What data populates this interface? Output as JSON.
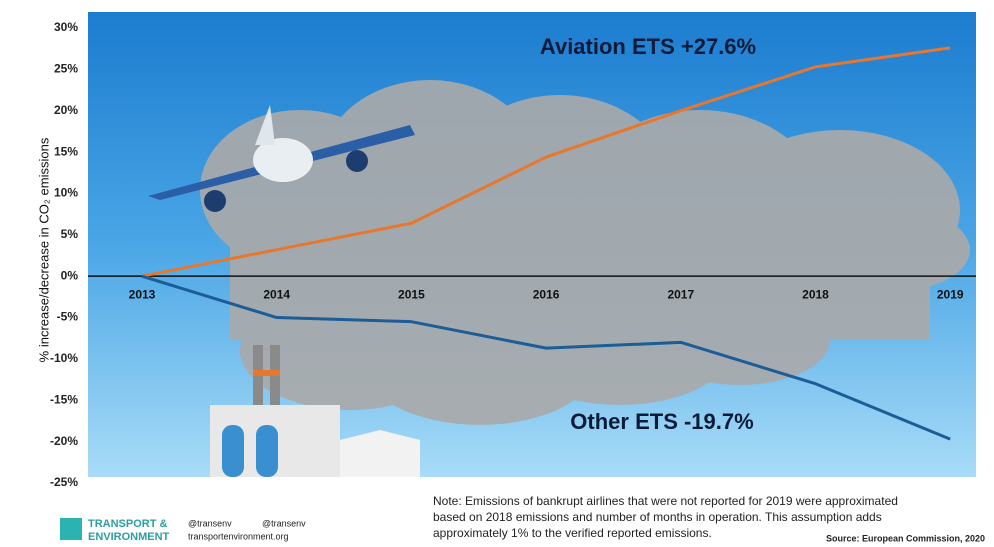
{
  "chart_data": {
    "type": "line",
    "y_label": "% increase/decrease in CO₂ emissions",
    "categories": [
      "2013",
      "2014",
      "2015",
      "2016",
      "2017",
      "2018",
      "2019"
    ],
    "series": [
      {
        "name": "Aviation ETS",
        "color": "#e8772e",
        "values": [
          0,
          3.2,
          6.4,
          14.4,
          20,
          25.3,
          27.6
        ]
      },
      {
        "name": "Other ETS",
        "color": "#1c5d96",
        "values": [
          0,
          -5,
          -5.5,
          -8.7,
          -8,
          -13,
          -19.7
        ]
      }
    ],
    "annotations": [
      "Aviation ETS +27.6%",
      "Other ETS -19.7%"
    ],
    "ylim": [
      -25,
      30
    ],
    "yticks": [
      {
        "value": 30,
        "label": "30%"
      },
      {
        "value": 25,
        "label": "25%"
      },
      {
        "value": 20,
        "label": "20%"
      },
      {
        "value": 15,
        "label": "15%"
      },
      {
        "value": 10,
        "label": "10%"
      },
      {
        "value": 5,
        "label": "5%"
      },
      {
        "value": 0,
        "label": "0%"
      },
      {
        "value": -5,
        "label": "-5%"
      },
      {
        "value": -10,
        "label": "-10%"
      },
      {
        "value": -15,
        "label": "-15%"
      },
      {
        "value": -20,
        "label": "-20%"
      },
      {
        "value": -25,
        "label": "-25%"
      }
    ],
    "grid": false,
    "note": [
      "Note:  Emissions of bankrupt airlines that were not reported for 2019 were approximated",
      "based on 2018 emissions and number of months in operation. This assumption adds",
      "approximately 1% to the verified reported emissions."
    ],
    "source": "Source: European Commission, 2020",
    "logo": [
      "TRANSPORT &",
      "ENVIRONMENT"
    ],
    "social": [
      "@transenv",
      "@transenv",
      "transportenvironment.org"
    ]
  }
}
